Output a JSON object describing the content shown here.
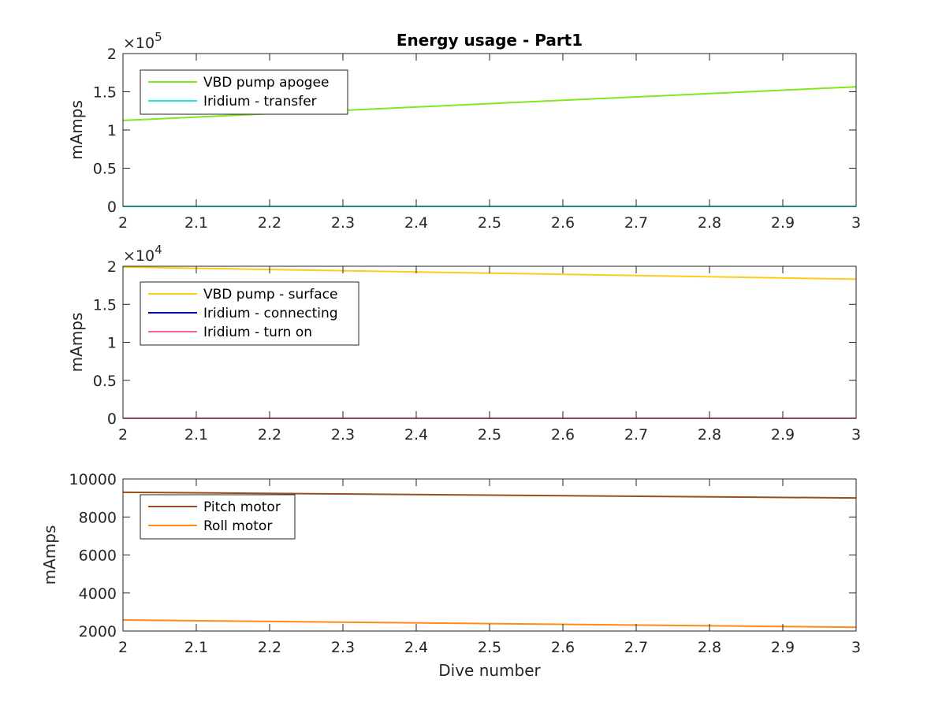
{
  "chart_data": [
    {
      "type": "line",
      "title": "Energy usage - Part1",
      "ylabel": "mAmps",
      "xlabel": "",
      "xlim": [
        2,
        3
      ],
      "ylim": [
        0,
        200000
      ],
      "y_exponent": "5",
      "x_ticks": [
        "2",
        "2.1",
        "2.2",
        "2.3",
        "2.4",
        "2.5",
        "2.6",
        "2.7",
        "2.8",
        "2.9",
        "3"
      ],
      "y_ticks": [
        {
          "value": 0,
          "label": "0"
        },
        {
          "value": 50000,
          "label": "0.5"
        },
        {
          "value": 100000,
          "label": "1"
        },
        {
          "value": 150000,
          "label": "1.5"
        },
        {
          "value": 200000,
          "label": "2"
        }
      ],
      "legend_position": "top-left",
      "series": [
        {
          "name": "VBD pump apogee",
          "color": "#7fe81f",
          "x": [
            2,
            3
          ],
          "y": [
            112500,
            156500
          ]
        },
        {
          "name": "Iridium - transfer",
          "color": "#19e6e6",
          "x": [
            2,
            3
          ],
          "y": [
            0,
            0
          ]
        }
      ]
    },
    {
      "type": "line",
      "title": "",
      "ylabel": "mAmps",
      "xlabel": "",
      "xlim": [
        2,
        3
      ],
      "ylim": [
        0,
        20000
      ],
      "y_exponent": "4",
      "x_ticks": [
        "2",
        "2.1",
        "2.2",
        "2.3",
        "2.4",
        "2.5",
        "2.6",
        "2.7",
        "2.8",
        "2.9",
        "3"
      ],
      "y_ticks": [
        {
          "value": 0,
          "label": "0"
        },
        {
          "value": 5000,
          "label": "0.5"
        },
        {
          "value": 10000,
          "label": "1"
        },
        {
          "value": 15000,
          "label": "1.5"
        },
        {
          "value": 20000,
          "label": "2"
        }
      ],
      "legend_position": "top-left",
      "series": [
        {
          "name": "VBD pump - surface",
          "color": "#ffcc19",
          "x": [
            2,
            3
          ],
          "y": [
            19900,
            18300
          ]
        },
        {
          "name": "Iridium - connecting",
          "color": "#0000b3",
          "x": [
            2,
            3
          ],
          "y": [
            0,
            0
          ]
        },
        {
          "name": "Iridium - turn on",
          "color": "#f2668c",
          "x": [
            2,
            3
          ],
          "y": [
            0,
            0
          ]
        }
      ]
    },
    {
      "type": "line",
      "title": "",
      "ylabel": "mAmps",
      "xlabel": "Dive number",
      "xlim": [
        2,
        3
      ],
      "ylim": [
        2000,
        10000
      ],
      "y_exponent": "",
      "x_ticks": [
        "2",
        "2.1",
        "2.2",
        "2.3",
        "2.4",
        "2.5",
        "2.6",
        "2.7",
        "2.8",
        "2.9",
        "3"
      ],
      "y_ticks": [
        {
          "value": 2000,
          "label": "2000"
        },
        {
          "value": 4000,
          "label": "4000"
        },
        {
          "value": 6000,
          "label": "6000"
        },
        {
          "value": 8000,
          "label": "8000"
        },
        {
          "value": 10000,
          "label": "10000"
        }
      ],
      "legend_position": "top-left",
      "series": [
        {
          "name": "Pitch motor",
          "color": "#994d19",
          "x": [
            2,
            3
          ],
          "y": [
            9300,
            9000
          ]
        },
        {
          "name": "Roll motor",
          "color": "#ff8c19",
          "x": [
            2,
            3
          ],
          "y": [
            2580,
            2200
          ]
        }
      ]
    }
  ]
}
